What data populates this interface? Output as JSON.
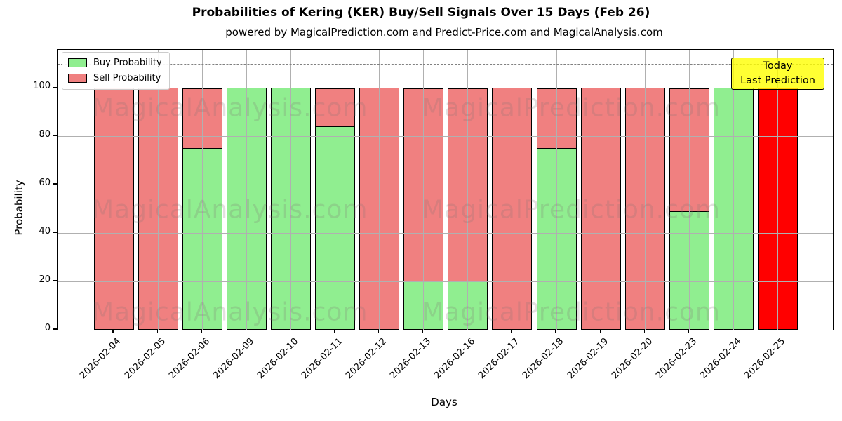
{
  "title": "Probabilities of Kering (KER) Buy/Sell Signals Over 15 Days (Feb 26)",
  "subtitle": "powered by MagicalPrediction.com and Predict-Price.com and MagicalAnalysis.com",
  "legend": {
    "buy_label": "Buy Probability",
    "sell_label": "Sell Probability"
  },
  "annotation": {
    "line1": "Today",
    "line2": "Last Prediction",
    "bg_color": "#FFFF00"
  },
  "axes": {
    "xlabel": "Days",
    "ylabel": "Probability",
    "yticks": [
      0,
      20,
      40,
      60,
      80,
      100
    ]
  },
  "watermarks": {
    "left_text": "MagicalAnalysis.com",
    "right_text": "MagicalPrediction.com",
    "color": "#808080"
  },
  "colors": {
    "buy": "#90EE90",
    "sell": "#F08080",
    "last_prediction": "#FF0000",
    "grid": "#B0B0B0",
    "dashed_line": "#808080",
    "bar_edge": "#000000"
  },
  "chart_data": {
    "type": "bar",
    "stacked": true,
    "title": "Probabilities of Kering (KER) Buy/Sell Signals Over 15 Days (Feb 26)",
    "xlabel": "Days",
    "ylabel": "Probability",
    "categories": [
      "2026-02-04",
      "2026-02-05",
      "2026-02-06",
      "2026-02-09",
      "2026-02-10",
      "2026-02-11",
      "2026-02-12",
      "2026-02-13",
      "2026-02-16",
      "2026-02-17",
      "2026-02-18",
      "2026-02-19",
      "2026-02-20",
      "2026-02-23",
      "2026-02-24",
      "2026-02-25"
    ],
    "series": [
      {
        "name": "Buy Probability",
        "color": "#90EE90",
        "values": [
          0,
          0,
          75,
          100,
          100,
          84,
          0,
          20,
          20,
          0,
          75,
          0,
          0,
          49,
          100,
          0
        ]
      },
      {
        "name": "Sell Probability",
        "color": "#F08080",
        "values": [
          100,
          100,
          25,
          0,
          0,
          16,
          100,
          80,
          80,
          100,
          25,
          100,
          100,
          51,
          0,
          100
        ]
      }
    ],
    "last_bar": {
      "index": 15,
      "sell_color": "#FF0000"
    },
    "dashed_line_y": 110,
    "ylim": [
      0,
      115.7
    ],
    "grid": true,
    "legend_position": "upper left"
  }
}
